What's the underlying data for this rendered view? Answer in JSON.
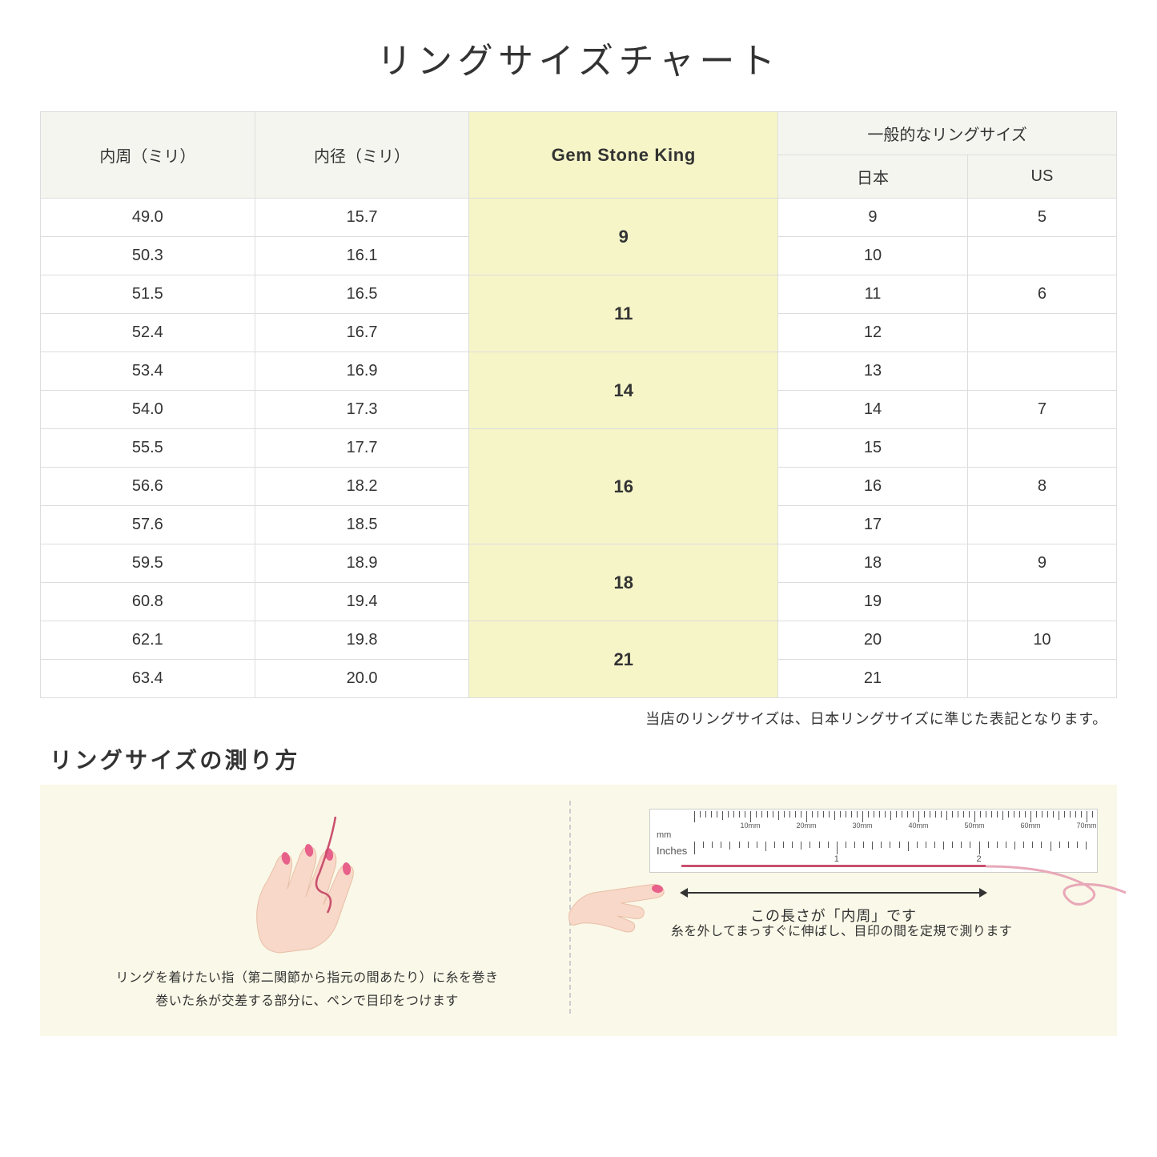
{
  "title": "リングサイズチャート",
  "headers": {
    "circumference": "内周（ミリ）",
    "diameter": "内径（ミリ）",
    "gsk": "Gem Stone King",
    "general": "一般的なリングサイズ",
    "japan": "日本",
    "us": "US"
  },
  "rows": [
    {
      "circ": "49.0",
      "dia": "15.7",
      "gsk": "9",
      "jp": "9",
      "us": "5",
      "gsk_rowspan": 2
    },
    {
      "circ": "50.3",
      "dia": "16.1",
      "jp": "10",
      "us": ""
    },
    {
      "circ": "51.5",
      "dia": "16.5",
      "gsk": "11",
      "jp": "11",
      "us": "6",
      "gsk_rowspan": 2
    },
    {
      "circ": "52.4",
      "dia": "16.7",
      "jp": "12",
      "us": ""
    },
    {
      "circ": "53.4",
      "dia": "16.9",
      "gsk": "14",
      "jp": "13",
      "us": "",
      "gsk_rowspan": 2
    },
    {
      "circ": "54.0",
      "dia": "17.3",
      "jp": "14",
      "us": "7"
    },
    {
      "circ": "55.5",
      "dia": "17.7",
      "gsk": "16",
      "jp": "15",
      "us": "",
      "gsk_rowspan": 3
    },
    {
      "circ": "56.6",
      "dia": "18.2",
      "jp": "16",
      "us": "8"
    },
    {
      "circ": "57.6",
      "dia": "18.5",
      "jp": "17",
      "us": ""
    },
    {
      "circ": "59.5",
      "dia": "18.9",
      "gsk": "18",
      "jp": "18",
      "us": "9",
      "gsk_rowspan": 2
    },
    {
      "circ": "60.8",
      "dia": "19.4",
      "jp": "19",
      "us": ""
    },
    {
      "circ": "62.1",
      "dia": "19.8",
      "gsk": "21",
      "jp": "20",
      "us": "10",
      "gsk_rowspan": 2
    },
    {
      "circ": "63.4",
      "dia": "20.0",
      "jp": "21",
      "us": ""
    }
  ],
  "note": "当店のリングサイズは、日本リングサイズに準じた表記となります。",
  "howto": {
    "title": "リングサイズの測り方",
    "left_caption_line1": "リングを着けたい指（第二関節から指元の間あたり）に糸を巻き",
    "left_caption_line2": "巻いた糸が交差する部分に、ペンで目印をつけます",
    "right_length_label": "この長さが「内周」です",
    "right_caption": "糸を外してまっすぐに伸ばし、目印の間を定規で測ります",
    "ruler": {
      "mm_unit": "mm",
      "in_unit": "Inches",
      "mm_labels": [
        "10mm",
        "20mm",
        "30mm",
        "40mm",
        "50mm",
        "60mm",
        "70mm"
      ],
      "in_labels": [
        "1",
        "2"
      ]
    }
  },
  "colors": {
    "header_bg": "#f5f5f0",
    "gsk_bg": "#f5f5c8",
    "howto_bg": "#faf8e8",
    "skin": "#f8d8c8",
    "nail": "#e8618a",
    "thread": "#c94f6e",
    "border": "#dddddd"
  }
}
